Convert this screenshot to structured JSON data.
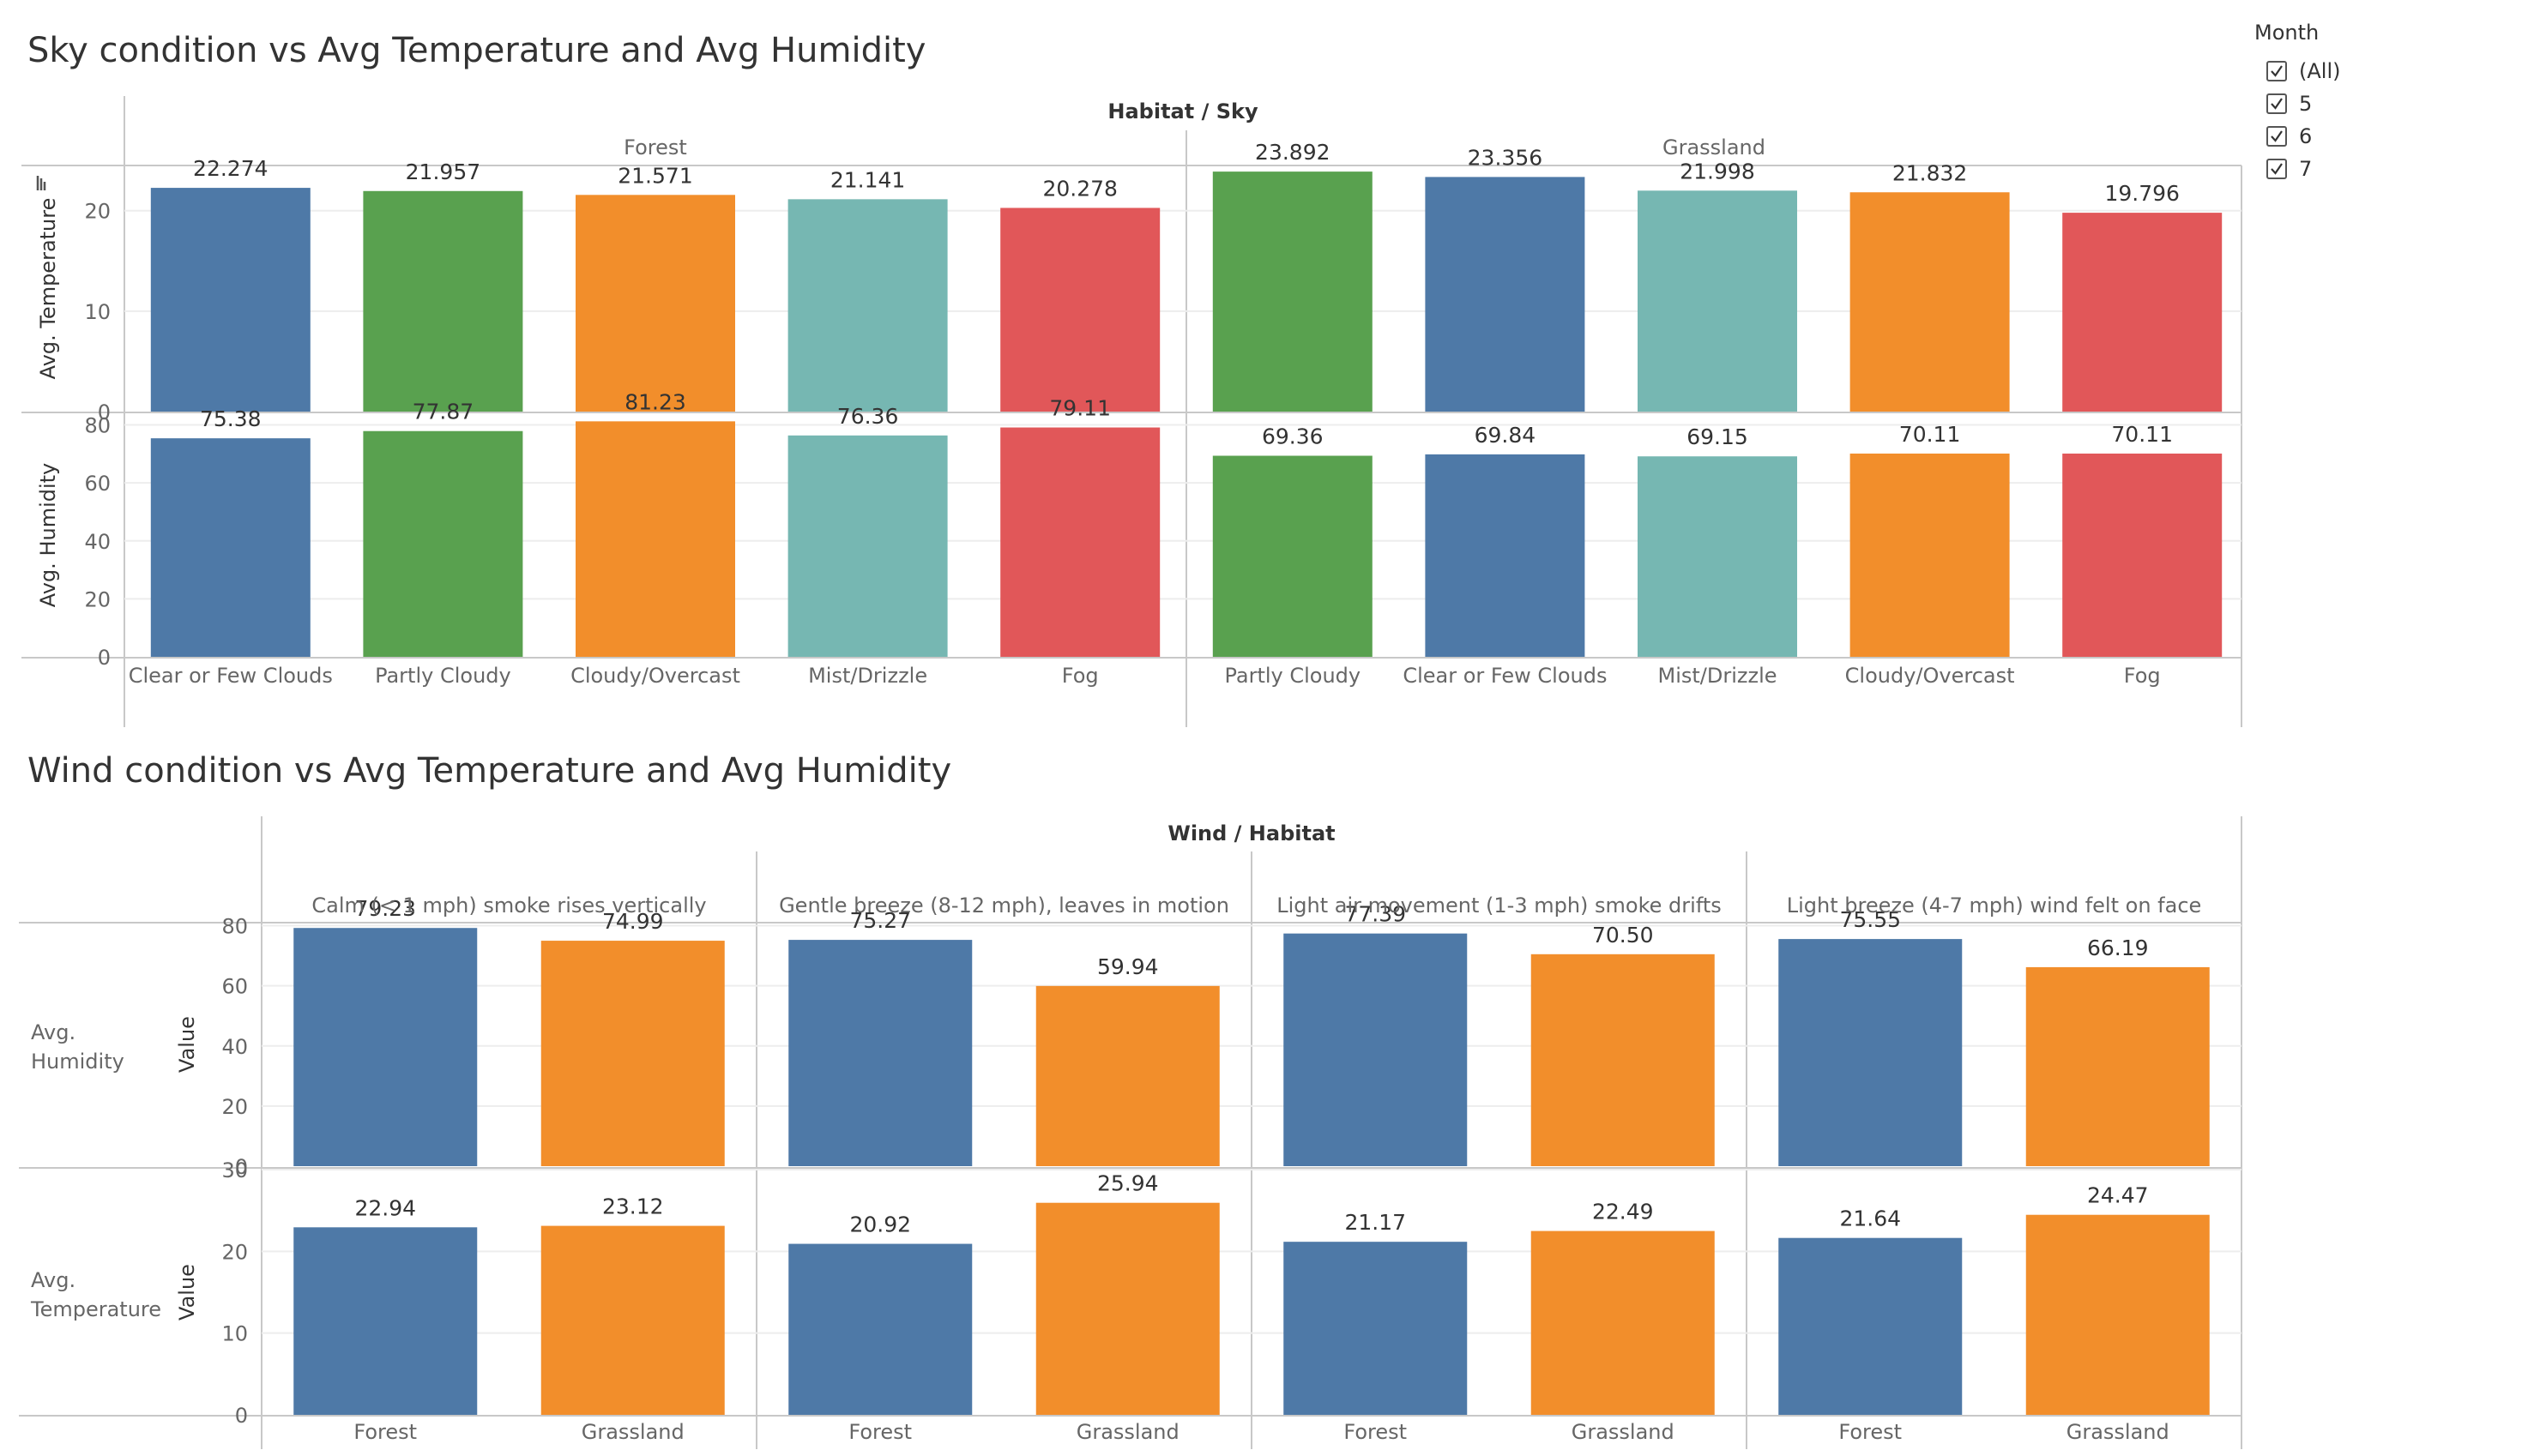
{
  "dashboard": {
    "filter": {
      "title": "Month",
      "options": [
        {
          "label": "(All)",
          "checked": true
        },
        {
          "label": "5",
          "checked": true
        },
        {
          "label": "6",
          "checked": true
        },
        {
          "label": "7",
          "checked": true
        }
      ]
    }
  },
  "colors": {
    "blue": "#4e79a7",
    "green": "#59a14f",
    "orange": "#f28e2b",
    "teal": "#76b7b2",
    "red": "#e15759"
  },
  "chart_data": [
    {
      "type": "bar",
      "title": "Sky condition vs Avg Temperature and Avg Humidity",
      "header": "Habitat / Sky",
      "groups": [
        {
          "name": "Forest",
          "categories": [
            "Clear or Few Clouds",
            "Partly Cloudy",
            "Cloudy/Overcast",
            "Mist/Drizzle",
            "Fog"
          ],
          "colors": [
            "#4e79a7",
            "#59a14f",
            "#f28e2b",
            "#76b7b2",
            "#e15759"
          ],
          "temperature": [
            "22.274",
            "21.957",
            "21.571",
            "21.141",
            "20.278"
          ],
          "humidity": [
            "75.38",
            "77.87",
            "81.23",
            "76.36",
            "79.11"
          ]
        },
        {
          "name": "Grassland",
          "categories": [
            "Partly Cloudy",
            "Clear or Few Clouds",
            "Mist/Drizzle",
            "Cloudy/Overcast",
            "Fog"
          ],
          "colors": [
            "#59a14f",
            "#4e79a7",
            "#76b7b2",
            "#f28e2b",
            "#e15759"
          ],
          "temperature": [
            "23.892",
            "23.356",
            "21.998",
            "21.832",
            "19.796"
          ],
          "humidity": [
            "69.36",
            "69.84",
            "69.15",
            "70.11",
            "70.11"
          ]
        }
      ],
      "rows": [
        {
          "key": "temperature",
          "label": "Avg. Temperature",
          "ylim": [
            0,
            24.5
          ],
          "ticks": [
            0,
            10,
            20
          ]
        },
        {
          "key": "humidity",
          "label": "Avg. Humidity",
          "ylim": [
            0,
            84
          ],
          "ticks": [
            0,
            20,
            40,
            60,
            80
          ]
        }
      ]
    },
    {
      "type": "bar",
      "title": "Wind condition vs Avg Temperature and Avg Humidity",
      "header": "Wind / Habitat",
      "groups": [
        {
          "name": "Calm (< 1 mph) smoke rises vertically",
          "categories": [
            "Forest",
            "Grassland"
          ],
          "colors": [
            "#4e79a7",
            "#f28e2b"
          ],
          "humidity": [
            "79.23",
            "74.99"
          ],
          "temperature": [
            "22.94",
            "23.12"
          ]
        },
        {
          "name": "Gentle breeze (8-12 mph), leaves in motion",
          "categories": [
            "Forest",
            "Grassland"
          ],
          "colors": [
            "#4e79a7",
            "#f28e2b"
          ],
          "humidity": [
            "75.27",
            "59.94"
          ],
          "temperature": [
            "20.92",
            "25.94"
          ]
        },
        {
          "name": "Light air movement (1-3 mph) smoke drifts",
          "categories": [
            "Forest",
            "Grassland"
          ],
          "colors": [
            "#4e79a7",
            "#f28e2b"
          ],
          "humidity": [
            "77.39",
            "70.50"
          ],
          "temperature": [
            "21.17",
            "22.49"
          ]
        },
        {
          "name": "Light breeze (4-7 mph) wind felt on face",
          "categories": [
            "Forest",
            "Grassland"
          ],
          "colors": [
            "#4e79a7",
            "#f28e2b"
          ],
          "humidity": [
            "75.55",
            "66.19"
          ],
          "temperature": [
            "21.64",
            "24.47"
          ]
        }
      ],
      "rows": [
        {
          "key": "humidity",
          "label": "Avg. Humidity",
          "axis_label": "Value",
          "ylim": [
            0,
            81
          ],
          "ticks": [
            0,
            20,
            40,
            60,
            80
          ]
        },
        {
          "key": "temperature",
          "label": "Avg. Temperature",
          "axis_label": "Value",
          "ylim": [
            0,
            30
          ],
          "ticks": [
            0,
            10,
            20,
            30
          ]
        }
      ]
    }
  ]
}
